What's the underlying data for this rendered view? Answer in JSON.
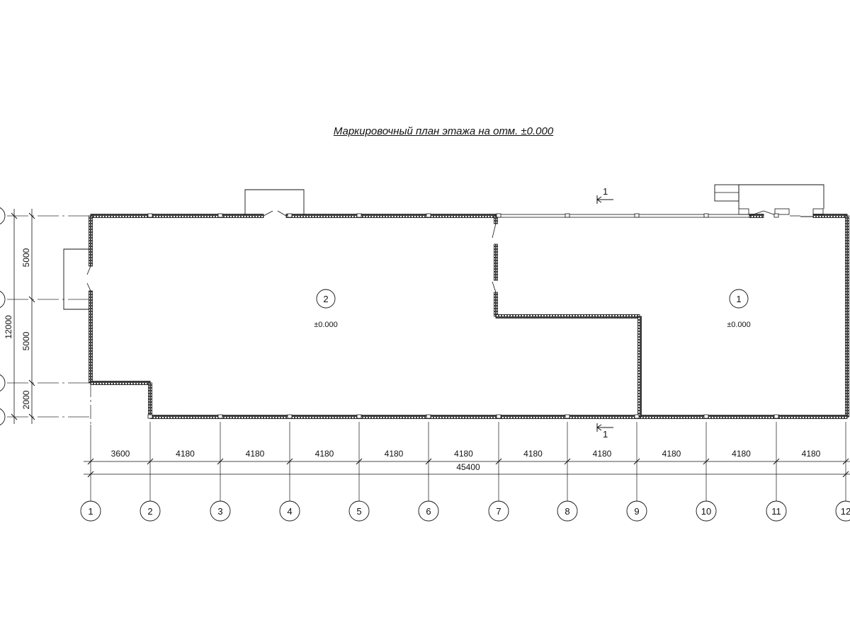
{
  "title": "Маркировочный план этажа на отм. ±0.000",
  "rooms": [
    {
      "number": "2",
      "level": "±0.000"
    },
    {
      "number": "1",
      "level": "±0.000"
    }
  ],
  "section_mark": "1",
  "column_axes": [
    "1",
    "2",
    "3",
    "4",
    "5",
    "6",
    "7",
    "8",
    "9",
    "10",
    "11",
    "12"
  ],
  "column_spacings": [
    "3600",
    "4180",
    "4180",
    "4180",
    "4180",
    "4180",
    "4180",
    "4180",
    "4180",
    "4180",
    "4180"
  ],
  "overall_length": "45400",
  "row_spacings": [
    "5000",
    "5000",
    "2000"
  ],
  "overall_width": "12000",
  "colors": {
    "line": "#111111",
    "wall_hatch": "#555555"
  }
}
